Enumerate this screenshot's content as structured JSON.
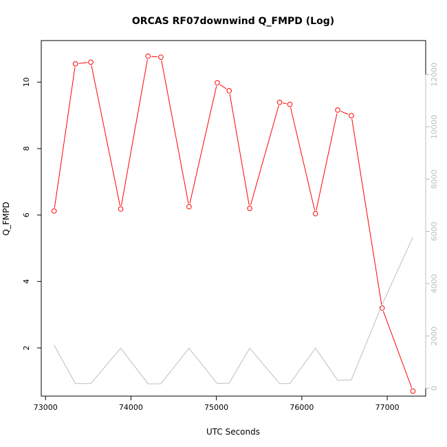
{
  "chart_data": {
    "type": "line",
    "title": "ORCAS RF07downwind Q_FMPD (Log)",
    "xlabel": "UTC Seconds",
    "ylabel": "Q_FMPD",
    "xlim": [
      72950,
      77450
    ],
    "ylim": [
      0.55,
      11.25
    ],
    "y2lim": [
      -300,
      13300
    ],
    "x_ticks": [
      73000,
      74000,
      75000,
      76000,
      77000
    ],
    "y_ticks": [
      2,
      4,
      6,
      8,
      10
    ],
    "y2_ticks": [
      0,
      2000,
      4000,
      6000,
      8000,
      10000,
      12000
    ],
    "grid": false,
    "series": [
      {
        "color": "#ff0000",
        "axis": "left",
        "markers": "open-circle",
        "x": [
          73100,
          73350,
          73530,
          73880,
          74200,
          74350,
          74680,
          75010,
          75150,
          75390,
          75740,
          75860,
          76160,
          76420,
          76580,
          76940,
          77300
        ],
        "values": [
          6.12,
          10.55,
          10.6,
          6.18,
          10.78,
          10.75,
          6.25,
          9.98,
          9.74,
          6.2,
          9.39,
          9.33,
          6.04,
          9.16,
          8.99,
          3.2,
          0.7
        ]
      },
      {
        "color": "#bdbdbd",
        "axis": "right",
        "markers": "none",
        "x": [
          73100,
          73350,
          73530,
          73880,
          74200,
          74350,
          74680,
          75010,
          75150,
          75390,
          75740,
          75860,
          76160,
          76420,
          76580,
          76940,
          77300
        ],
        "values": [
          1650,
          180,
          180,
          1530,
          170,
          170,
          1530,
          180,
          200,
          1530,
          180,
          180,
          1530,
          300,
          320,
          3200,
          5780
        ]
      }
    ]
  }
}
